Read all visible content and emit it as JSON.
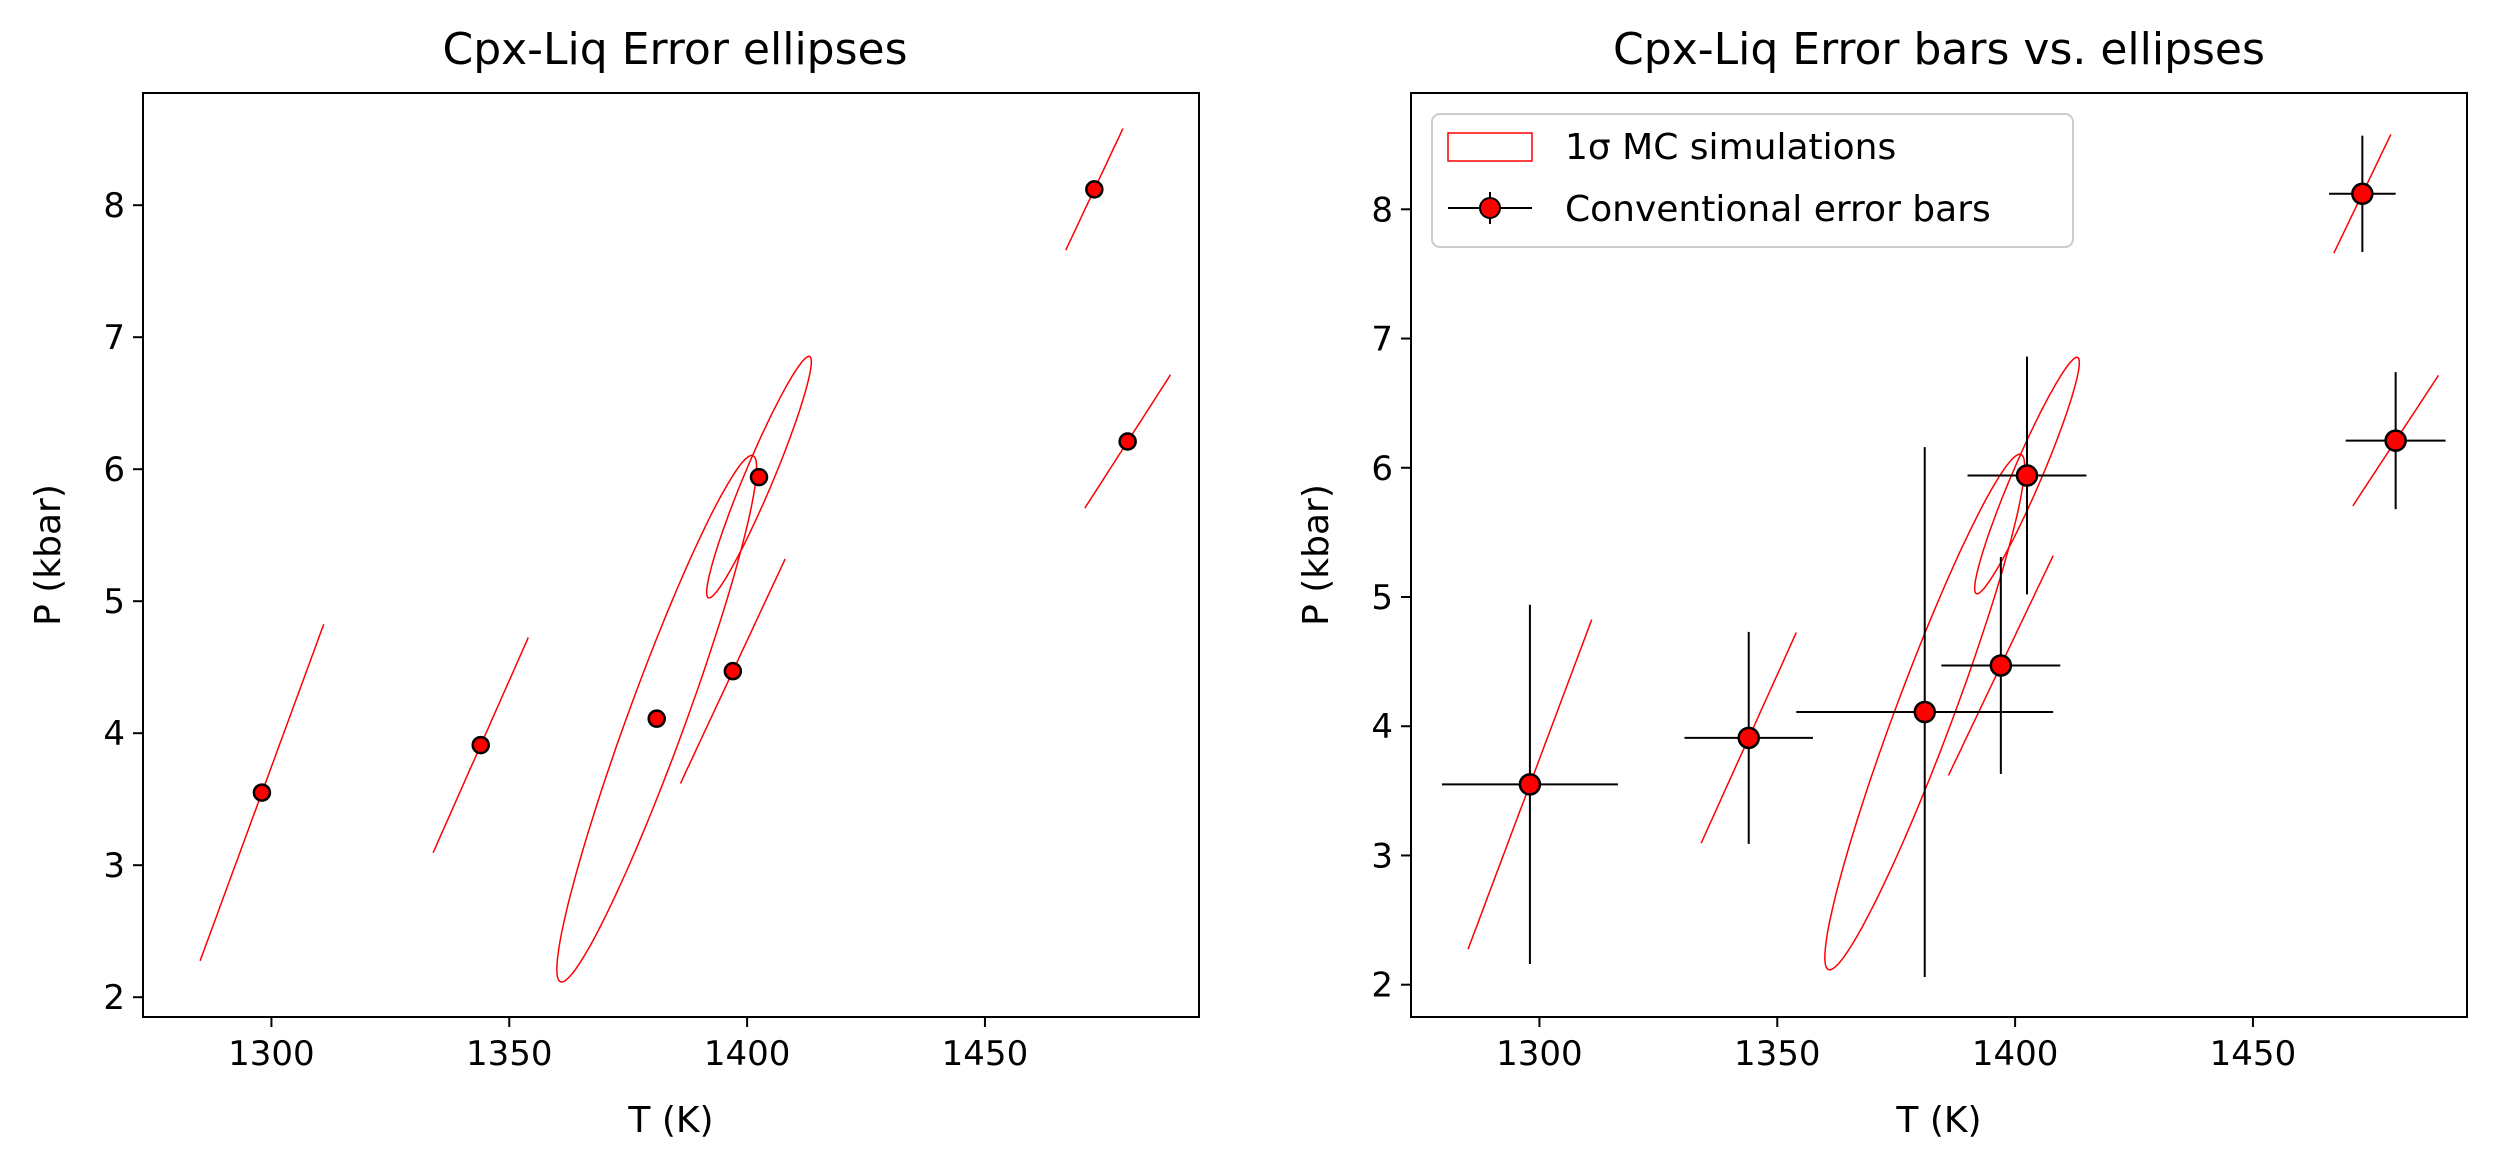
{
  "chart_data": [
    {
      "type": "scatter",
      "title": "Cpx-Liq Error ellipses",
      "xlabel": "T (K)",
      "ylabel": "P (kbar)",
      "xlim": [
        1273,
        1495
      ],
      "ylim": [
        1.85,
        8.85
      ],
      "xticks": [
        "1300",
        "1350",
        "1400",
        "1450"
      ],
      "yticks": [
        "2",
        "3",
        "4",
        "5",
        "6",
        "7",
        "8"
      ],
      "colors": {
        "point_fill": "#ff0000",
        "point_edge": "#000000",
        "ellipse": "#ff0000"
      },
      "points": [
        {
          "T": 1298,
          "P": 3.55
        },
        {
          "T": 1344,
          "P": 3.91
        },
        {
          "T": 1381,
          "P": 4.11
        },
        {
          "T": 1397,
          "P": 4.47
        },
        {
          "T": 1402.5,
          "P": 5.94
        },
        {
          "T": 1473,
          "P": 8.12
        },
        {
          "T": 1480,
          "P": 6.21
        }
      ],
      "ellipses": [
        {
          "T": 1298,
          "P": 3.55,
          "T_lo": 1285,
          "T_hi": 1311,
          "P_lo": 2.29,
          "P_hi": 4.84
        },
        {
          "T": 1344,
          "P": 3.91,
          "T_lo": 1334,
          "T_hi": 1354,
          "P_lo": 3.1,
          "P_hi": 4.73
        },
        {
          "T": 1381,
          "P": 4.11,
          "T_lo": 1359,
          "T_hi": 1401,
          "P_lo": 2.12,
          "P_hi": 6.11
        },
        {
          "T": 1397,
          "P": 4.47,
          "T_lo": 1386,
          "T_hi": 1408,
          "P_lo": 3.62,
          "P_hi": 5.32
        },
        {
          "T": 1402.5,
          "P": 5.94,
          "T_lo": 1391,
          "T_hi": 1413,
          "P_lo": 5.03,
          "P_hi": 6.86
        },
        {
          "T": 1473,
          "P": 8.12,
          "T_lo": 1467,
          "T_hi": 1479,
          "P_lo": 7.66,
          "P_hi": 8.58
        },
        {
          "T": 1480,
          "P": 6.21,
          "T_lo": 1471,
          "T_hi": 1489,
          "P_lo": 5.72,
          "P_hi": 6.73
        }
      ]
    },
    {
      "type": "scatter",
      "title": "Cpx-Liq Error bars vs. ellipses",
      "xlabel": "T (K)",
      "ylabel": "P (kbar)",
      "xlim": [
        1273,
        1495
      ],
      "ylim": [
        1.75,
        8.9
      ],
      "xticks": [
        "1300",
        "1350",
        "1400",
        "1450"
      ],
      "yticks": [
        "2",
        "3",
        "4",
        "5",
        "6",
        "7",
        "8"
      ],
      "legend": {
        "position": "upper-left",
        "entries": [
          {
            "label": "1σ MC simulations",
            "kind": "ellipse-patch"
          },
          {
            "label": "Conventional error bars",
            "kind": "errorbar-marker"
          }
        ]
      },
      "colors": {
        "point_fill": "#ff0000",
        "point_edge": "#000000",
        "ellipse": "#ff0000",
        "errorbar": "#000000"
      },
      "points": [
        {
          "T": 1298,
          "P": 3.55,
          "T_err": 18.5,
          "P_err": 1.39
        },
        {
          "T": 1344,
          "P": 3.91,
          "T_err": 13.5,
          "P_err": 0.82
        },
        {
          "T": 1381,
          "P": 4.11,
          "T_err": 27,
          "P_err": 2.05
        },
        {
          "T": 1397,
          "P": 4.47,
          "T_err": 12.5,
          "P_err": 0.84
        },
        {
          "T": 1402.5,
          "P": 5.94,
          "T_err": 12.5,
          "P_err": 0.92
        },
        {
          "T": 1473,
          "P": 8.12,
          "T_err": 7,
          "P_err": 0.45
        },
        {
          "T": 1480,
          "P": 6.21,
          "T_err": 10.5,
          "P_err": 0.53
        }
      ],
      "ellipses": [
        {
          "T": 1298,
          "P": 3.55,
          "T_lo": 1285,
          "T_hi": 1311,
          "P_lo": 2.29,
          "P_hi": 4.84
        },
        {
          "T": 1344,
          "P": 3.91,
          "T_lo": 1334,
          "T_hi": 1354,
          "P_lo": 3.1,
          "P_hi": 4.73
        },
        {
          "T": 1381,
          "P": 4.11,
          "T_lo": 1359,
          "T_hi": 1401,
          "P_lo": 2.12,
          "P_hi": 6.11
        },
        {
          "T": 1397,
          "P": 4.47,
          "T_lo": 1386,
          "T_hi": 1408,
          "P_lo": 3.62,
          "P_hi": 5.32
        },
        {
          "T": 1402.5,
          "P": 5.94,
          "T_lo": 1391,
          "T_hi": 1413,
          "P_lo": 5.03,
          "P_hi": 6.86
        },
        {
          "T": 1473,
          "P": 8.12,
          "T_lo": 1467,
          "T_hi": 1479,
          "P_lo": 7.66,
          "P_hi": 8.58
        },
        {
          "T": 1480,
          "P": 6.21,
          "T_lo": 1471,
          "T_hi": 1489,
          "P_lo": 5.72,
          "P_hi": 6.73
        }
      ]
    }
  ]
}
